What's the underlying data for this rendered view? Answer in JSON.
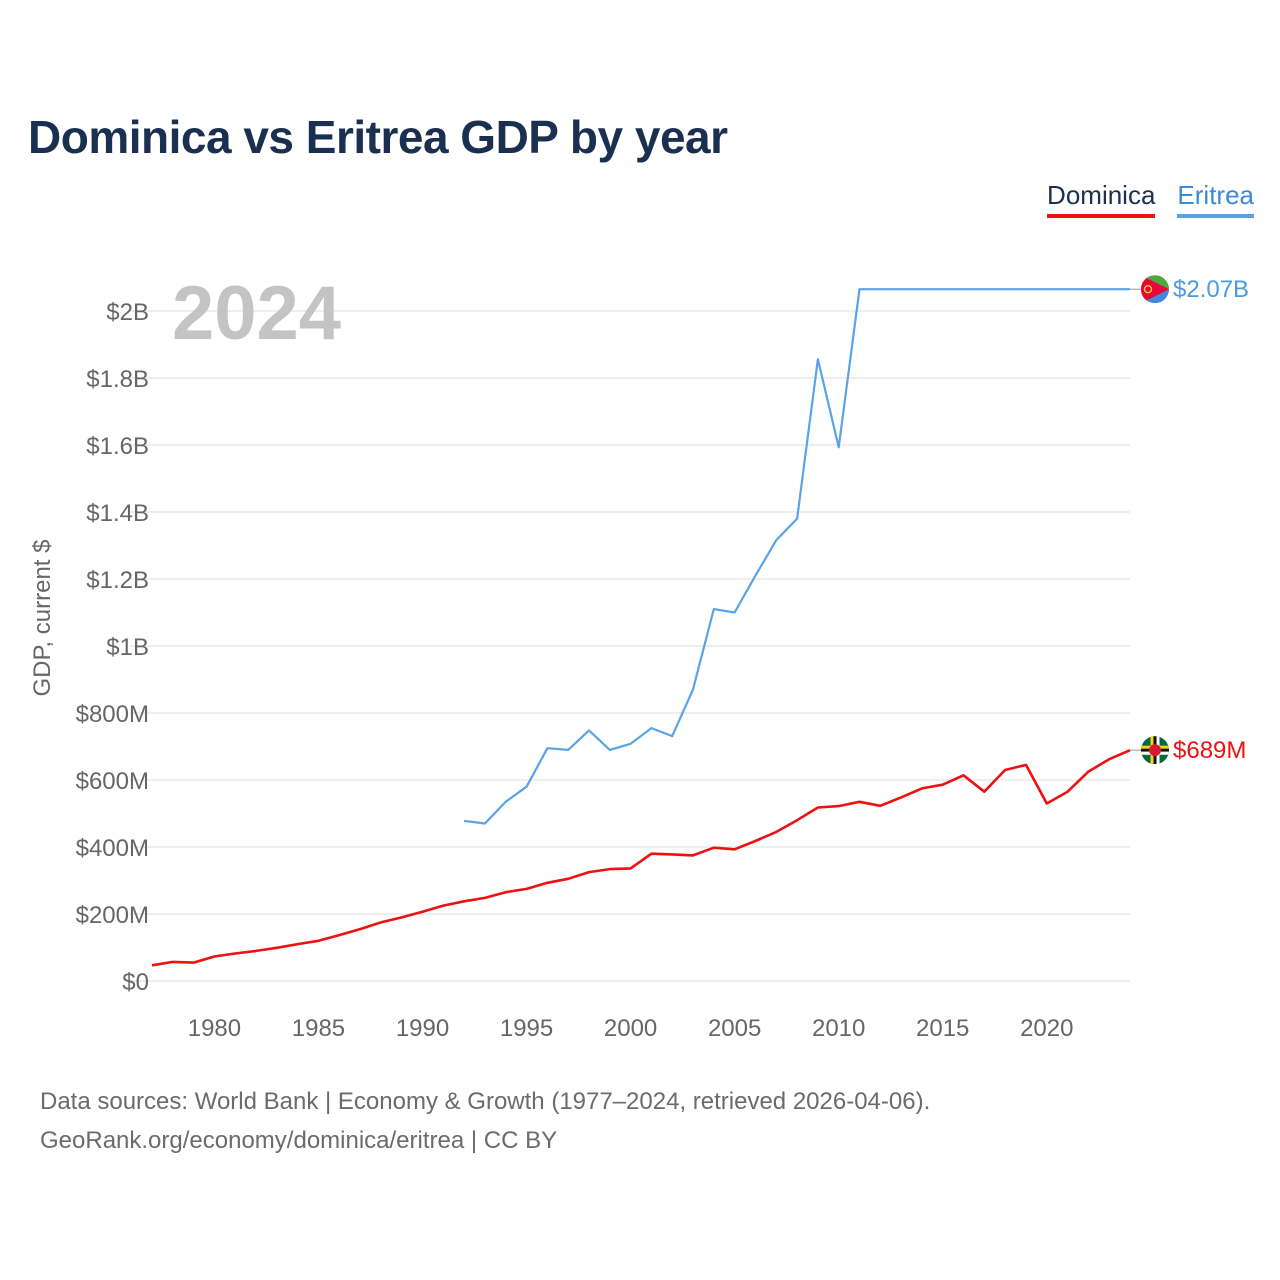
{
  "title": "Dominica vs Eritrea GDP by year",
  "legend": [
    {
      "name": "Dominica",
      "color": "#ee1111"
    },
    {
      "name": "Eritrea",
      "color": "#5ba3e6"
    }
  ],
  "year_label": "2024",
  "source_line1": "Data sources: World Bank | Economy & Growth (1977–2024, retrieved 2026-04-06).",
  "source_line2": "GeoRank.org/economy/dominica/eritrea | CC BY",
  "chart_data": {
    "type": "line",
    "title": "Dominica vs Eritrea GDP by year",
    "xlabel": "",
    "ylabel": "GDP, current $",
    "xlim": [
      1977,
      2024
    ],
    "ylim": [
      0,
      2000000000
    ],
    "grid": true,
    "legend_position": "top-right",
    "y_ticks": [
      {
        "value": 0,
        "label": "$0"
      },
      {
        "value": 200000000,
        "label": "$200M"
      },
      {
        "value": 400000000,
        "label": "$400M"
      },
      {
        "value": 600000000,
        "label": "$600M"
      },
      {
        "value": 800000000,
        "label": "$800M"
      },
      {
        "value": 1000000000,
        "label": "$1B"
      },
      {
        "value": 1200000000,
        "label": "$1.2B"
      },
      {
        "value": 1400000000,
        "label": "$1.4B"
      },
      {
        "value": 1600000000,
        "label": "$1.6B"
      },
      {
        "value": 1800000000,
        "label": "$1.8B"
      },
      {
        "value": 2000000000,
        "label": "$2B"
      }
    ],
    "x_ticks": [
      1980,
      1985,
      1990,
      1995,
      2000,
      2005,
      2010,
      2015,
      2020
    ],
    "series": [
      {
        "name": "Dominica",
        "color": "#ee1111",
        "end_label": "$689M",
        "flag_icon": "dominica-flag-icon",
        "x": [
          1977,
          1978,
          1979,
          1980,
          1981,
          1982,
          1983,
          1984,
          1985,
          1986,
          1987,
          1988,
          1989,
          1990,
          1991,
          1992,
          1993,
          1994,
          1995,
          1996,
          1997,
          1998,
          1999,
          2000,
          2001,
          2002,
          2003,
          2004,
          2005,
          2006,
          2007,
          2008,
          2009,
          2010,
          2011,
          2012,
          2013,
          2014,
          2015,
          2016,
          2017,
          2018,
          2019,
          2020,
          2021,
          2022,
          2023,
          2024
        ],
        "values": [
          47000000,
          57000000,
          55000000,
          73000000,
          82000000,
          90000000,
          99000000,
          110000000,
          120000000,
          137000000,
          155000000,
          175000000,
          190000000,
          207000000,
          225000000,
          238000000,
          248000000,
          265000000,
          275000000,
          293000000,
          305000000,
          325000000,
          334000000,
          336000000,
          380000000,
          378000000,
          375000000,
          398000000,
          393000000,
          418000000,
          445000000,
          480000000,
          518000000,
          522000000,
          535000000,
          523000000,
          548000000,
          575000000,
          586000000,
          614000000,
          565000000,
          630000000,
          645000000,
          530000000,
          565000000,
          625000000,
          662000000,
          689000000
        ]
      },
      {
        "name": "Eritrea",
        "color": "#5ba3e6",
        "end_label": "$2.07B",
        "flag_icon": "eritrea-flag-icon",
        "x": [
          1992,
          1993,
          1994,
          1995,
          1996,
          1997,
          1998,
          1999,
          2000,
          2001,
          2002,
          2003,
          2004,
          2005,
          2006,
          2007,
          2008,
          2009,
          2010,
          2011,
          2012,
          2013,
          2014,
          2015,
          2016,
          2017,
          2018,
          2019,
          2020,
          2021,
          2022,
          2023,
          2024
        ],
        "values": [
          478000000,
          470000000,
          535000000,
          580000000,
          695000000,
          690000000,
          748000000,
          690000000,
          708000000,
          755000000,
          731000000,
          870000000,
          1110000000,
          1100000000,
          1210000000,
          1316000000,
          1380000000,
          1856000000,
          1593000000,
          2065000000,
          2065000000,
          2065000000,
          2065000000,
          2065000000,
          2065000000,
          2065000000,
          2065000000,
          2065000000,
          2065000000,
          2065000000,
          2065000000,
          2065000000,
          2065000000
        ]
      }
    ]
  }
}
